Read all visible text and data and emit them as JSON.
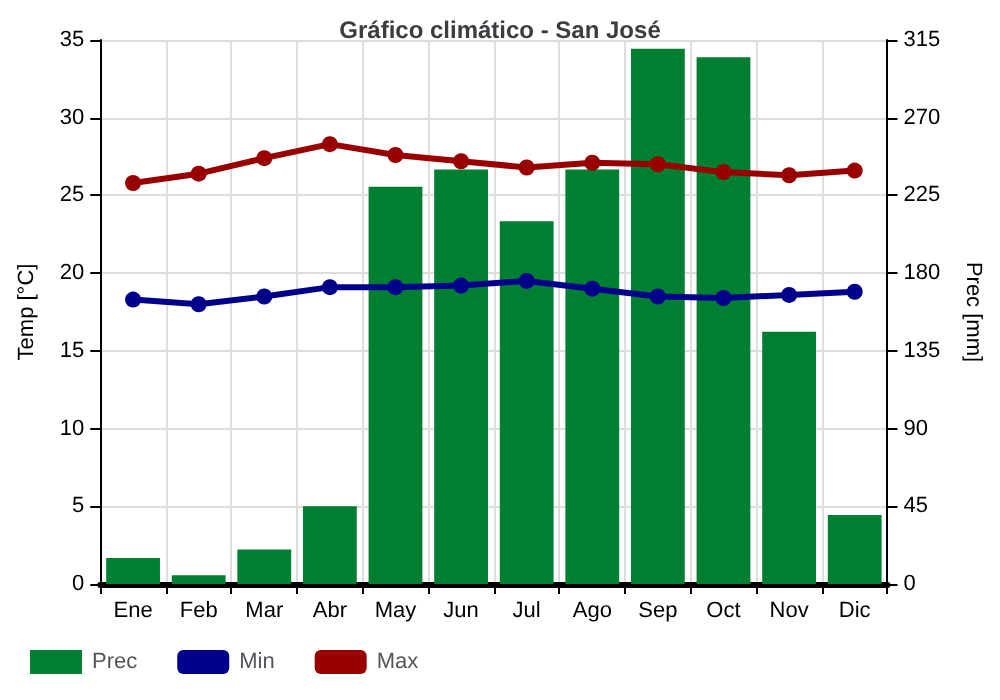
{
  "chart_data": {
    "type": "bar",
    "title": "Gráfico climático - San José",
    "ylabel": "Temp [°C]",
    "y2label": "Prec [mm]",
    "categories": [
      "Ene",
      "Feb",
      "Mar",
      "Abr",
      "May",
      "Jun",
      "Jul",
      "Ago",
      "Sep",
      "Oct",
      "Nov",
      "Dic"
    ],
    "series": [
      {
        "name": "Prec",
        "axis": "y2",
        "color": "#007f33",
        "values": [
          15,
          5,
          20,
          45,
          230,
          240,
          210,
          240,
          310,
          305,
          146,
          40
        ]
      },
      {
        "name": "Min",
        "type": "line",
        "color": "#00008b",
        "values": [
          18.3,
          18.0,
          18.5,
          19.1,
          19.1,
          19.2,
          19.5,
          19.0,
          18.5,
          18.4,
          18.6,
          18.8
        ]
      },
      {
        "name": "Max",
        "type": "line",
        "color": "#990000",
        "values": [
          25.8,
          26.4,
          27.4,
          28.3,
          27.6,
          27.2,
          26.8,
          27.1,
          27.0,
          26.5,
          26.3,
          26.6
        ]
      }
    ],
    "ylim": [
      0,
      35
    ],
    "yticks": [
      0,
      5,
      10,
      15,
      20,
      25,
      30,
      35
    ],
    "y2lim": [
      0,
      315
    ],
    "y2ticks": [
      0,
      45,
      90,
      135,
      180,
      225,
      270,
      315
    ],
    "grid": true,
    "legend": "bottom left",
    "marker": "circle",
    "line_style": "solid"
  }
}
